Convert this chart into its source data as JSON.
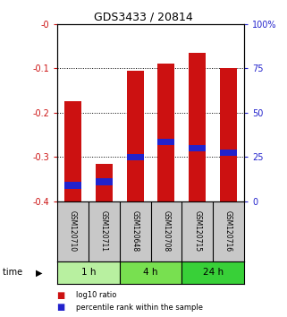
{
  "title": "GDS3433 / 20814",
  "samples": [
    "GSM120710",
    "GSM120711",
    "GSM120648",
    "GSM120708",
    "GSM120715",
    "GSM120716"
  ],
  "log10_ratio": [
    -0.175,
    -0.315,
    -0.105,
    -0.09,
    -0.065,
    -0.1
  ],
  "percentile_rank": [
    0.09,
    0.11,
    0.25,
    0.335,
    0.3,
    0.275
  ],
  "groups": [
    {
      "label": "1 h",
      "samples": [
        0,
        1
      ],
      "color": "#b8f0a0"
    },
    {
      "label": "4 h",
      "samples": [
        2,
        3
      ],
      "color": "#78e050"
    },
    {
      "label": "24 h",
      "samples": [
        4,
        5
      ],
      "color": "#38d038"
    }
  ],
  "ylim_left": [
    -0.4,
    0.0
  ],
  "ylim_right": [
    0,
    100
  ],
  "left_ticks": [
    -0.4,
    -0.3,
    -0.2,
    -0.1,
    0.0
  ],
  "right_ticks": [
    0,
    25,
    50,
    75,
    100
  ],
  "left_tick_labels": [
    "-0.4",
    "-0.3",
    "-0.2",
    "-0.1",
    "-0"
  ],
  "right_tick_labels": [
    "0",
    "25",
    "50",
    "75",
    "100%"
  ],
  "bar_color": "#cc1111",
  "percentile_color": "#2222cc",
  "bar_width": 0.55,
  "bg_color": "#ffffff",
  "label_bg": "#c8c8c8",
  "legend_items": [
    {
      "label": "log10 ratio",
      "color": "#cc1111"
    },
    {
      "label": "percentile rank within the sample",
      "color": "#2222cc"
    }
  ]
}
